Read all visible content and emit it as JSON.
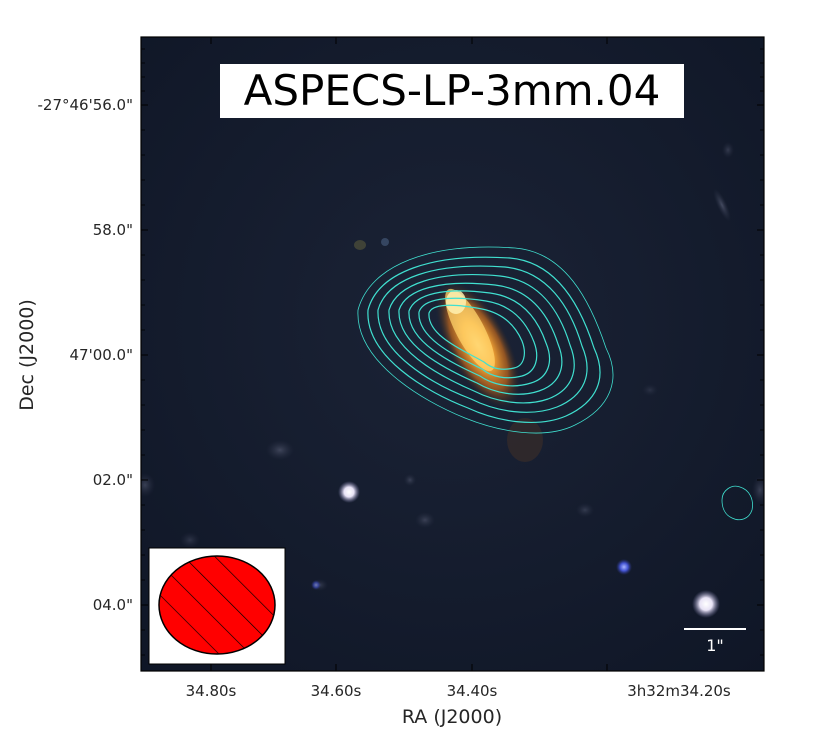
{
  "figure": {
    "title": "ASPECS-LP-3mm.04",
    "x_axis_label": "RA (J2000)",
    "y_axis_label": "Dec (J2000)",
    "x_tick_labels": [
      "34.80s",
      "34.60s",
      "34.40s",
      "3h32m34.20s"
    ],
    "y_tick_labels": [
      "-27°46'56.0\"",
      "58.0\"",
      "47'00.0\"",
      "02.0\"",
      "04.0\""
    ],
    "scale_bar_label": "1\"",
    "contour_color": "#40e0d0",
    "beam_color": "#ff0000",
    "background_color": "#141c2e"
  }
}
